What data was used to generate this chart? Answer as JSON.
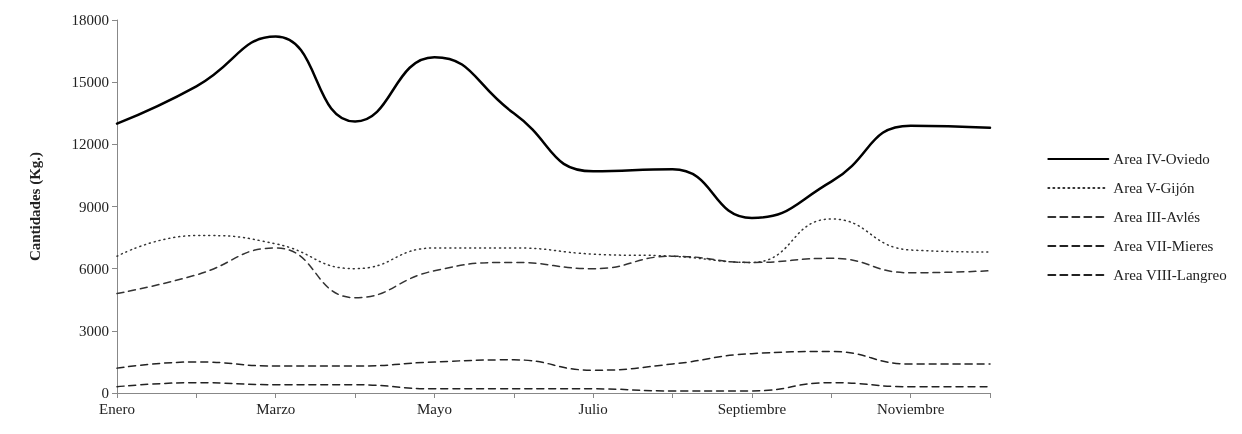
{
  "chart_data": {
    "type": "line",
    "ylabel": "Cantidades (Kg.)",
    "categories": [
      "Enero",
      null,
      "Marzo",
      null,
      "Mayo",
      null,
      "Julio",
      null,
      "Septiembre",
      null,
      "Noviembre",
      null
    ],
    "series": [
      {
        "name": "Area IV-Oviedo",
        "color": "#000000",
        "line_style": "solid",
        "values": [
          13000,
          14800,
          17200,
          13100,
          16200,
          13500,
          10700,
          10800,
          8450,
          10200,
          12900,
          12800
        ]
      },
      {
        "name": "Area V-Gijón",
        "color": "#333333",
        "line_style": "dotted",
        "values": [
          6600,
          7600,
          7200,
          6000,
          7000,
          7000,
          6700,
          6600,
          6300,
          8400,
          6900,
          6800
        ]
      },
      {
        "name": "Area III-Avlés",
        "color": "#333333",
        "line_style": "dashed",
        "values": [
          4800,
          5700,
          7000,
          4600,
          5900,
          6300,
          6000,
          6600,
          6300,
          6500,
          5800,
          5900
        ]
      },
      {
        "name": "Area VII-Mieres",
        "color": "#222222",
        "line_style": "dashed",
        "values": [
          1200,
          1500,
          1300,
          1300,
          1500,
          1600,
          1100,
          1400,
          1900,
          2000,
          1400,
          1400
        ]
      },
      {
        "name": "Area VIII-Langreo",
        "color": "#222222",
        "line_style": "dashed",
        "values": [
          300,
          500,
          400,
          400,
          200,
          200,
          200,
          100,
          100,
          500,
          300,
          300
        ]
      }
    ],
    "ylim": [
      0,
      18000
    ],
    "yticks": [
      0,
      3000,
      6000,
      9000,
      12000,
      15000,
      18000
    ],
    "legend": "right",
    "marker": "none"
  }
}
